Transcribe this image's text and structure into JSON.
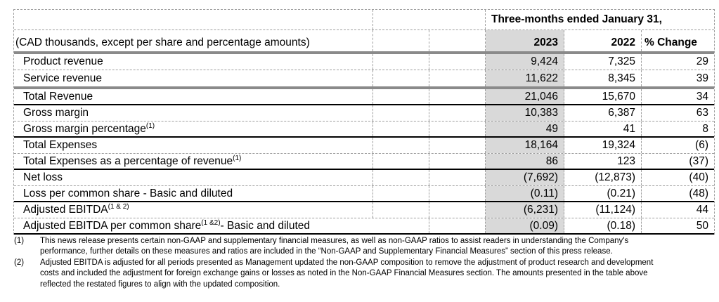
{
  "table": {
    "period_header": "Three-months ended January 31,",
    "unit_note": "(CAD thousands, except per share and percentage amounts)",
    "columns": {
      "y2023": "2023",
      "y2022": "2022",
      "change": "% Change"
    },
    "rows": [
      {
        "label": "Product revenue",
        "y2023": "9,424",
        "y2022": "7,325",
        "change": "29"
      },
      {
        "label": "Service revenue",
        "y2023": "11,622",
        "y2022": "8,345",
        "change": "39"
      },
      {
        "label": "Total Revenue",
        "y2023": "21,046",
        "y2022": "15,670",
        "change": "34"
      },
      {
        "label": "Gross margin",
        "y2023": "10,383",
        "y2022": "6,387",
        "change": "63"
      },
      {
        "label": "Gross margin percentage",
        "sup": "(1)",
        "y2023": "49",
        "y2022": "41",
        "change": "8"
      },
      {
        "label": "Total Expenses",
        "y2023": "18,164",
        "y2022": "19,324",
        "change": "(6)"
      },
      {
        "label": "Total Expenses as a percentage of revenue",
        "sup": "(1)",
        "y2023": "86",
        "y2022": "123",
        "change": "(37)"
      },
      {
        "label": "Net loss",
        "y2023": "(7,692)",
        "y2022": "(12,873)",
        "change": "(40)"
      },
      {
        "label": "Loss per common share - Basic and diluted",
        "y2023": "(0.11)",
        "y2022": "(0.21)",
        "change": "(48)"
      },
      {
        "label": "Adjusted EBITDA",
        "sup": "(1 & 2)",
        "y2023": "(6,231)",
        "y2022": "(11,124)",
        "change": "44"
      },
      {
        "label": "Adjusted EBITDA per common share",
        "sup": "(1 &2)",
        "label2": " - Basic and diluted",
        "y2023": "(0.09)",
        "y2022": "(0.18)",
        "change": "50"
      }
    ]
  },
  "footnotes": [
    {
      "marker": "(1)",
      "lines": [
        "This news release presents certain non-GAAP and supplementary financial measures, as well as non-GAAP ratios to assist readers in understanding the Company's",
        "performance, further details on these measures and ratios are included in the “Non-GAAP and Supplementary Financial Measures” section of this press release."
      ]
    },
    {
      "marker": "(2)",
      "lines": [
        "Adjusted EBITDA is adjusted for all periods presented as Management updated the non-GAAP composition to remove the adjustment of product research and development",
        "costs and included the adjustment for foreign exchange gains or losses as noted in the Non-GAAP Financial Measures section. The amounts presented in the table above",
        "reflected the restated figures to align with the updated composition."
      ]
    }
  ],
  "colors": {
    "highlight_column_bg": "#d9d9d9",
    "thick_rule": "#8a8a8a",
    "grid_dash": "#9e9e9e"
  }
}
